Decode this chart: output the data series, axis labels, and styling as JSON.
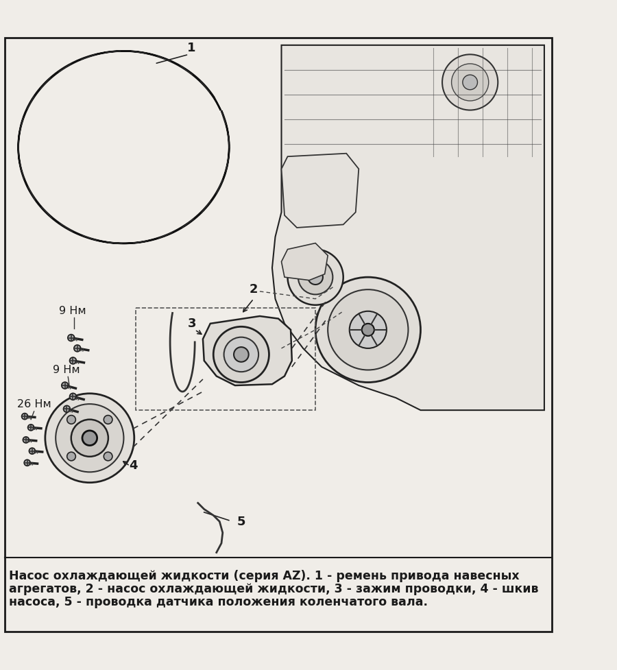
{
  "bg_color": "#f0ede8",
  "border_color": "#1a1a1a",
  "title_text": "",
  "caption_line1": "Насос охлаждающей жидкости (серия AZ). 1 - ремень привода навесных",
  "caption_line2": "агрегатов, 2 - насос охлаждающей жидкости, 3 - зажим проводки, 4 - шкив",
  "caption_line3": "насоса, 5 - проводка датчика положения коленчатого вала.",
  "label_1": "1",
  "label_2": "2",
  "label_3": "3",
  "label_4": "4",
  "label_5": "5",
  "nm_9_top": "9 Нм",
  "nm_9_bot": "9 Нм",
  "nm_26": "26 Нм",
  "text_color": "#1a1a1a",
  "font_size_caption": 12.5,
  "font_size_label": 13
}
